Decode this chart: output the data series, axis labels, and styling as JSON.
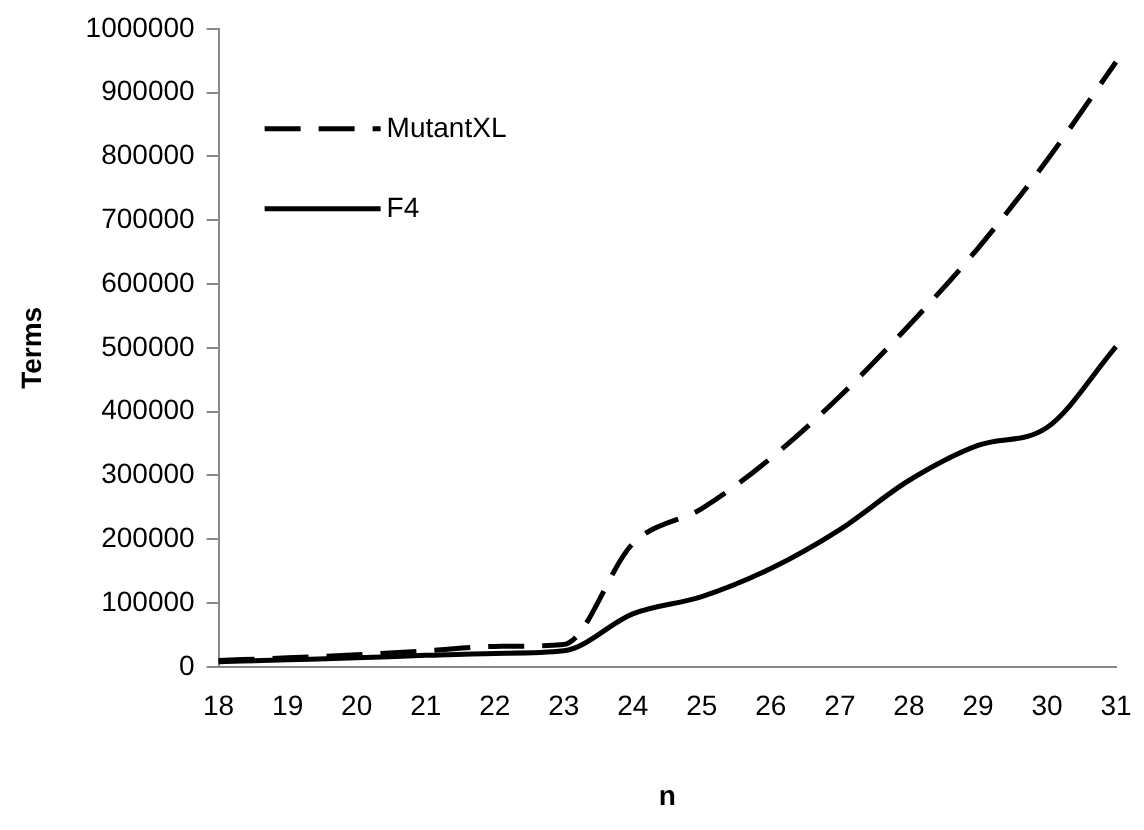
{
  "chart_data": {
    "type": "line",
    "xlabel": "n",
    "ylabel": "Terms",
    "categories": [
      "18",
      "19",
      "20",
      "21",
      "22",
      "23",
      "24",
      "25",
      "26",
      "27",
      "28",
      "29",
      "30",
      "31"
    ],
    "series": [
      {
        "name": "MutantXL",
        "color": "#000000",
        "line_style": "dashed",
        "values": [
          10000,
          14000,
          19000,
          25000,
          32000,
          35000,
          193000,
          248000,
          327000,
          424000,
          535000,
          656000,
          794000,
          948000
        ]
      },
      {
        "name": "F4",
        "color": "#000000",
        "line_style": "solid",
        "values": [
          8000,
          11000,
          14000,
          18000,
          21000,
          25000,
          83000,
          110000,
          154000,
          215000,
          292000,
          347000,
          375000,
          502000
        ]
      }
    ],
    "ylim": [
      0,
      1000000
    ],
    "yticks": [
      0,
      100000,
      200000,
      300000,
      400000,
      500000,
      600000,
      700000,
      800000,
      900000,
      1000000
    ],
    "grid": false,
    "legend": "top left",
    "marker": "none"
  }
}
